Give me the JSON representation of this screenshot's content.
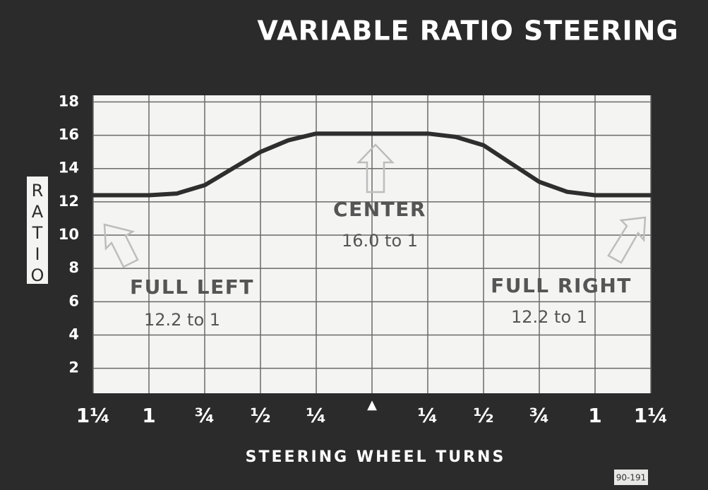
{
  "chart_data": {
    "type": "line",
    "title": "VARIABLE RATIO STEERING",
    "x_label": "STEERING WHEEL TURNS",
    "y_label": "RATIO",
    "x": [
      -1.25,
      -1.0,
      -0.875,
      -0.75,
      -0.625,
      -0.5,
      -0.375,
      -0.25,
      -0.125,
      0,
      0.125,
      0.25,
      0.375,
      0.5,
      0.625,
      0.75,
      0.875,
      1.0,
      1.25
    ],
    "values": [
      12.4,
      12.4,
      12.5,
      13.0,
      14.0,
      15.0,
      15.7,
      16.1,
      16.1,
      16.1,
      16.1,
      16.1,
      15.9,
      15.4,
      14.3,
      13.2,
      12.6,
      12.4,
      12.4
    ],
    "color": "#2e2e2e",
    "xlim": [
      -1.25,
      1.25
    ],
    "ylim": [
      0.5,
      18.4
    ],
    "xticks": [
      {
        "value": -1.25,
        "label": "1¼"
      },
      {
        "value": -1.0,
        "label": "1"
      },
      {
        "value": -0.75,
        "label": "¾"
      },
      {
        "value": -0.5,
        "label": "½"
      },
      {
        "value": -0.25,
        "label": "¼"
      },
      {
        "value": 0,
        "label": "▲"
      },
      {
        "value": 0.25,
        "label": "¼"
      },
      {
        "value": 0.5,
        "label": "½"
      },
      {
        "value": 0.75,
        "label": "¾"
      },
      {
        "value": 1.0,
        "label": "1"
      },
      {
        "value": 1.25,
        "label": "1¼"
      }
    ],
    "yticks": [
      2,
      4,
      6,
      8,
      10,
      12,
      14,
      16,
      18
    ],
    "grid": true,
    "annotations": [
      "CENTER",
      "16.0 to 1",
      "FULL LEFT",
      "12.2 to 1",
      "FULL RIGHT",
      "12.2 to 1"
    ],
    "figure_code": "90-191"
  }
}
